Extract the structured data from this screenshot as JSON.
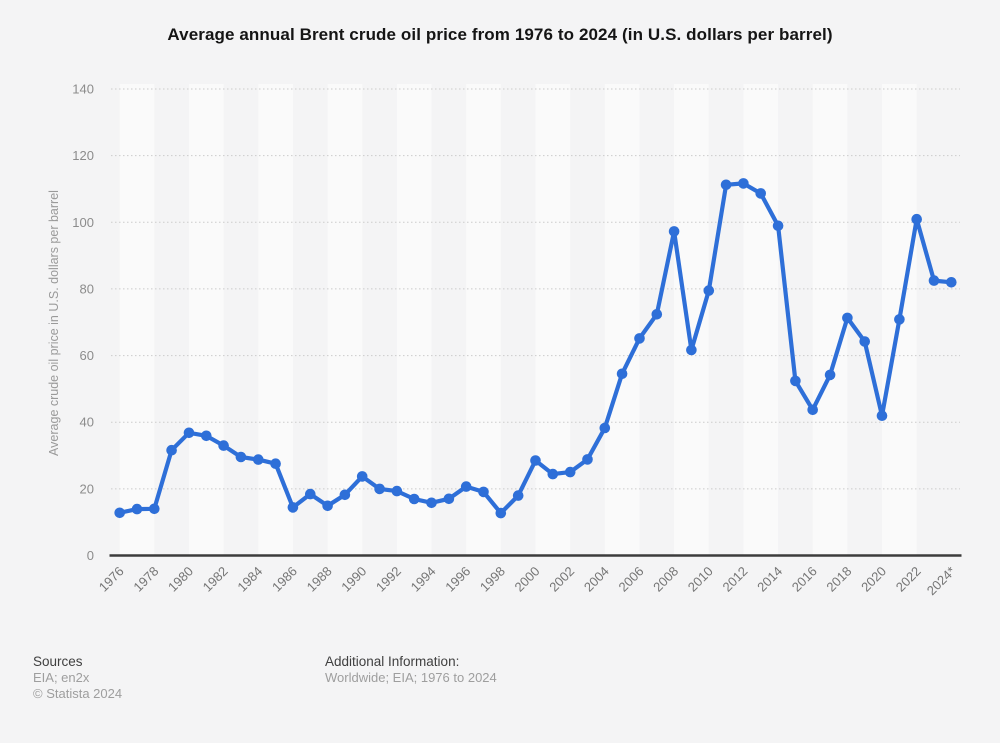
{
  "page": {
    "title": "Average annual Brent crude oil price from 1976 to 2024 (in U.S. dollars per barrel)"
  },
  "chart_data": {
    "type": "line",
    "title": "Average annual Brent crude oil price from 1976 to 2024 (in U.S. dollars per barrel)",
    "xlabel": "",
    "ylabel": "Average crude oil price in U.S. dollars per barrel",
    "ylim": [
      0,
      140
    ],
    "ytick_step": 20,
    "ytick_labels": [
      "0",
      "20",
      "40",
      "60",
      "80",
      "100",
      "120",
      "140"
    ],
    "grid": "horizontal dotted gridlines, alternating vertical background bands every 2 years",
    "legend": "none",
    "marker": "circle",
    "categories": [
      "1976",
      "1977",
      "1978",
      "1979",
      "1980",
      "1981",
      "1982",
      "1983",
      "1984",
      "1985",
      "1986",
      "1987",
      "1988",
      "1989",
      "1990",
      "1991",
      "1992",
      "1993",
      "1994",
      "1995",
      "1996",
      "1997",
      "1998",
      "1999",
      "2000",
      "2001",
      "2002",
      "2003",
      "2004",
      "2005",
      "2006",
      "2007",
      "2008",
      "2009",
      "2010",
      "2011",
      "2012",
      "2013",
      "2014",
      "2015",
      "2016",
      "2017",
      "2018",
      "2019",
      "2020",
      "2021",
      "2022",
      "2023",
      "2024*"
    ],
    "x_tick_labels_shown": [
      "1976",
      "1978",
      "1980",
      "1982",
      "1984",
      "1986",
      "1988",
      "1990",
      "1992",
      "1994",
      "1996",
      "1998",
      "2000",
      "2002",
      "2004",
      "2006",
      "2008",
      "2010",
      "2012",
      "2014",
      "2016",
      "2018",
      "2020",
      "2022",
      "2024*"
    ],
    "series": [
      {
        "name": "Brent crude oil price (U.S. dollars per barrel)",
        "values": [
          12.8,
          13.92,
          14.02,
          31.61,
          36.83,
          35.93,
          32.97,
          29.55,
          28.78,
          27.56,
          14.43,
          18.44,
          14.92,
          18.23,
          23.73,
          20.0,
          19.32,
          16.97,
          15.82,
          17.02,
          20.67,
          19.09,
          12.72,
          17.97,
          28.5,
          24.44,
          25.02,
          28.83,
          38.27,
          54.52,
          65.14,
          72.39,
          97.26,
          61.67,
          79.5,
          111.26,
          111.67,
          108.66,
          98.95,
          52.39,
          43.73,
          54.19,
          71.31,
          64.21,
          41.96,
          70.86,
          100.93,
          82.49,
          82.0
        ]
      }
    ]
  },
  "colors": {
    "line": "#2e6fd8",
    "marker": "#2e6fd8",
    "background": "#f4f4f5",
    "band_light": "#fafafa",
    "gridline": "#cbcbcb",
    "axis_line": "#3c3c3c",
    "y_tick_text": "#8c8c8c",
    "x_tick_text": "#757575"
  },
  "footer": {
    "sources_label": "Sources",
    "sources_value": "EIA; en2x",
    "copyright": "© Statista 2024",
    "additional_label": "Additional Information:",
    "additional_value": "Worldwide; EIA; 1976 to 2024"
  }
}
